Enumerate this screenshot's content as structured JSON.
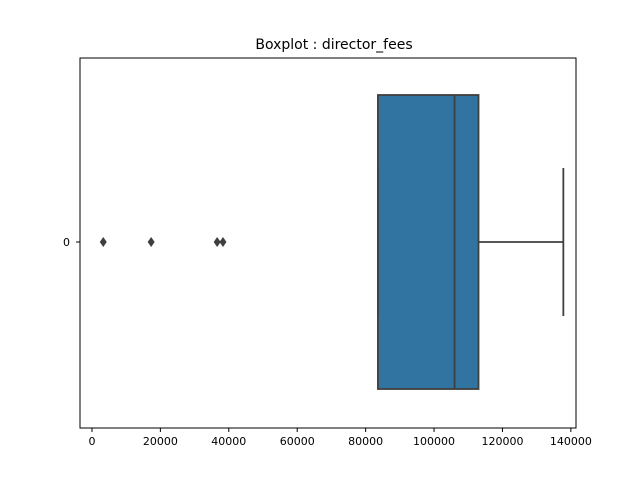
{
  "chart_data": {
    "type": "boxplot",
    "title": "Boxplot : director_fees",
    "orientation": "horizontal",
    "xlim": [
      -3500,
      141500
    ],
    "x_ticks": [
      0,
      20000,
      40000,
      60000,
      80000,
      100000,
      120000,
      140000
    ],
    "x_tick_labels": [
      "0",
      "20000",
      "40000",
      "60000",
      "80000",
      "100000",
      "120000",
      "140000"
    ],
    "y_tick_labels": [
      "0"
    ],
    "box": {
      "category": "0",
      "whisker_low": 83600,
      "q1": 83600,
      "median": 106000,
      "q3": 113000,
      "whisker_high": 137800,
      "outliers": [
        3300,
        17300,
        36600,
        38300
      ]
    },
    "colors": {
      "box_fill": "#3274a1",
      "lines": "#3f3f3f"
    },
    "grid": false
  }
}
